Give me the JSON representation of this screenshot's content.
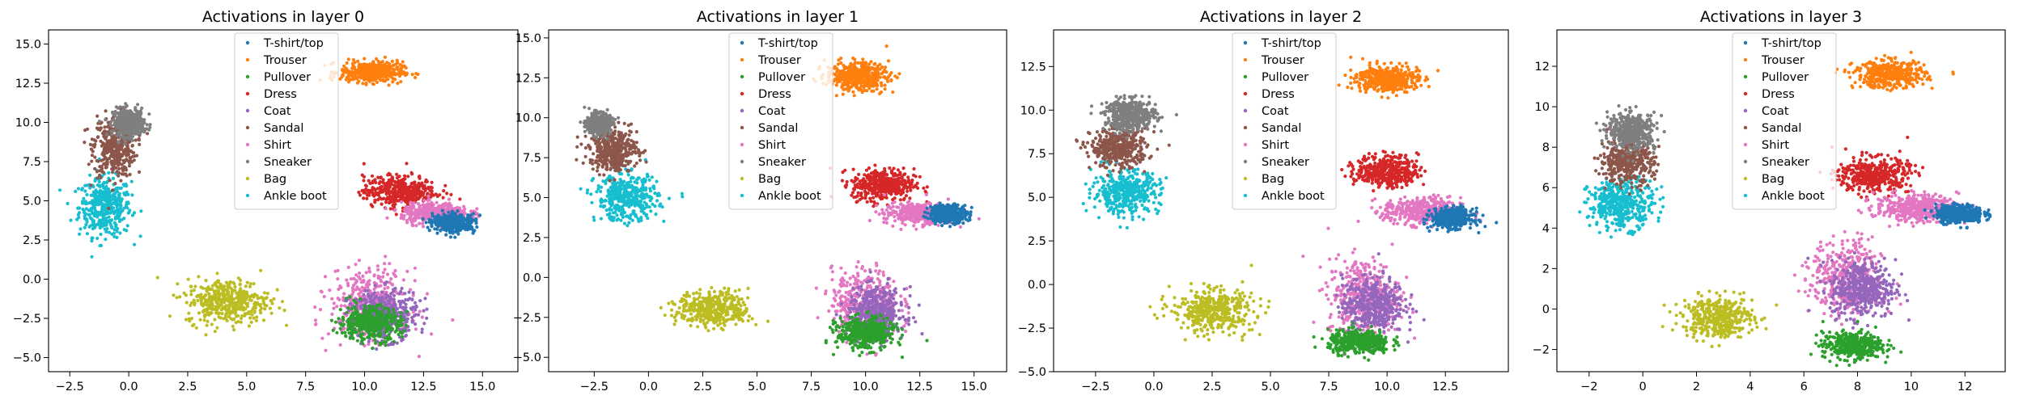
{
  "figure": {
    "layer_label": "Activations in layer"
  },
  "legend_labels": [
    "T-shirt/top",
    "Trouser",
    "Pullover",
    "Dress",
    "Coat",
    "Sandal",
    "Shirt",
    "Sneaker",
    "Bag",
    "Ankle boot"
  ],
  "colors": [
    "#1f77b4",
    "#ff7f0e",
    "#2ca02c",
    "#d62728",
    "#9467bd",
    "#8c564b",
    "#e377c2",
    "#7f7f7f",
    "#bcbd22",
    "#17becf"
  ],
  "chart_data": [
    {
      "type": "scatter",
      "title": "Activations in layer 0",
      "xlim": [
        -3.4,
        16.5
      ],
      "ylim": [
        -5.9,
        15.9
      ],
      "xticks": [
        -2.5,
        0.0,
        2.5,
        5.0,
        7.5,
        10.0,
        12.5,
        15.0
      ],
      "xtick_labels": [
        "−2.5",
        "0.0",
        "2.5",
        "5.0",
        "7.5",
        "10.0",
        "12.5",
        "15.0"
      ],
      "yticks": [
        -5.0,
        -2.5,
        0.0,
        2.5,
        5.0,
        7.5,
        10.0,
        12.5,
        15.0
      ],
      "ytick_labels": [
        "−5.0",
        "−2.5",
        "0.0",
        "2.5",
        "5.0",
        "7.5",
        "10.0",
        "12.5",
        "15.0"
      ],
      "legend": "upper center",
      "clusters": [
        {
          "class": "Ankle boot",
          "x": -1.0,
          "y": 4.6,
          "sx": 1.0,
          "sy": 1.7
        },
        {
          "class": "Sandal",
          "x": -0.6,
          "y": 8.5,
          "sx": 0.8,
          "sy": 1.8
        },
        {
          "class": "Sneaker",
          "x": 0.0,
          "y": 10.0,
          "sx": 0.6,
          "sy": 0.8
        },
        {
          "class": "Trouser",
          "x": 10.3,
          "y": 13.2,
          "sx": 1.2,
          "sy": 0.6
        },
        {
          "class": "Bag",
          "x": 4.2,
          "y": -1.4,
          "sx": 1.6,
          "sy": 1.3
        },
        {
          "class": "Dress",
          "x": 11.5,
          "y": 5.6,
          "sx": 1.4,
          "sy": 0.9
        },
        {
          "class": "Shirt",
          "x": 13.0,
          "y": 4.2,
          "sx": 1.3,
          "sy": 0.6
        },
        {
          "class": "Shirt",
          "x": 10.2,
          "y": -1.6,
          "sx": 1.5,
          "sy": 2.0
        },
        {
          "class": "Coat",
          "x": 10.8,
          "y": -2.3,
          "sx": 1.3,
          "sy": 1.4
        },
        {
          "class": "Pullover",
          "x": 10.2,
          "y": -2.8,
          "sx": 1.2,
          "sy": 1.0
        },
        {
          "class": "T-shirt/top",
          "x": 13.8,
          "y": 3.6,
          "sx": 0.8,
          "sy": 0.5
        }
      ]
    },
    {
      "type": "scatter",
      "title": "Activations in layer 1",
      "xlim": [
        -4.6,
        16.5
      ],
      "ylim": [
        -5.9,
        15.5
      ],
      "xticks": [
        -2.5,
        0.0,
        2.5,
        5.0,
        7.5,
        10.0,
        12.5,
        15.0
      ],
      "xtick_labels": [
        "−2.5",
        "0.0",
        "2.5",
        "5.0",
        "7.5",
        "10.0",
        "12.5",
        "15.0"
      ],
      "yticks": [
        -5.0,
        -2.5,
        0.0,
        2.5,
        5.0,
        7.5,
        10.0,
        12.5,
        15.0
      ],
      "ytick_labels": [
        "−5.0",
        "−2.5",
        "0.0",
        "2.5",
        "5.0",
        "7.5",
        "10.0",
        "12.5",
        "15.0"
      ],
      "legend": "upper center",
      "clusters": [
        {
          "class": "Ankle boot",
          "x": -1.0,
          "y": 5.0,
          "sx": 1.3,
          "sy": 1.3
        },
        {
          "class": "Sandal",
          "x": -1.6,
          "y": 8.0,
          "sx": 1.0,
          "sy": 1.2
        },
        {
          "class": "Sneaker",
          "x": -2.3,
          "y": 9.6,
          "sx": 0.5,
          "sy": 0.6
        },
        {
          "class": "Trouser",
          "x": 9.6,
          "y": 12.6,
          "sx": 1.3,
          "sy": 0.8
        },
        {
          "class": "Bag",
          "x": 3.0,
          "y": -2.0,
          "sx": 1.5,
          "sy": 1.0
        },
        {
          "class": "Dress",
          "x": 10.8,
          "y": 5.8,
          "sx": 1.3,
          "sy": 0.9
        },
        {
          "class": "Shirt",
          "x": 12.5,
          "y": 4.0,
          "sx": 1.5,
          "sy": 0.6
        },
        {
          "class": "Shirt",
          "x": 10.0,
          "y": -1.6,
          "sx": 1.4,
          "sy": 1.9
        },
        {
          "class": "Coat",
          "x": 10.5,
          "y": -2.2,
          "sx": 1.2,
          "sy": 1.4
        },
        {
          "class": "Pullover",
          "x": 10.0,
          "y": -3.5,
          "sx": 1.2,
          "sy": 0.9
        },
        {
          "class": "T-shirt/top",
          "x": 13.8,
          "y": 4.0,
          "sx": 0.8,
          "sy": 0.5
        }
      ]
    },
    {
      "type": "scatter",
      "title": "Activations in layer 2",
      "xlim": [
        -4.3,
        15.2
      ],
      "ylim": [
        -5.0,
        14.6
      ],
      "xticks": [
        -2.5,
        0.0,
        2.5,
        5.0,
        7.5,
        10.0,
        12.5
      ],
      "xtick_labels": [
        "−2.5",
        "0.0",
        "2.5",
        "5.0",
        "7.5",
        "10.0",
        "12.5"
      ],
      "yticks": [
        -5.0,
        -2.5,
        0.0,
        2.5,
        5.0,
        7.5,
        10.0,
        12.5
      ],
      "ytick_labels": [
        "−5.0",
        "−2.5",
        "0.0",
        "2.5",
        "5.0",
        "7.5",
        "10.0",
        "12.5"
      ],
      "legend": "upper center",
      "clusters": [
        {
          "class": "Ankle boot",
          "x": -1.2,
          "y": 5.3,
          "sx": 1.3,
          "sy": 1.1
        },
        {
          "class": "Sandal",
          "x": -1.5,
          "y": 7.8,
          "sx": 1.1,
          "sy": 1.0
        },
        {
          "class": "Sneaker",
          "x": -1.0,
          "y": 9.7,
          "sx": 1.0,
          "sy": 0.8
        },
        {
          "class": "Trouser",
          "x": 10.0,
          "y": 11.8,
          "sx": 1.2,
          "sy": 0.7
        },
        {
          "class": "Bag",
          "x": 2.5,
          "y": -1.5,
          "sx": 1.6,
          "sy": 1.1
        },
        {
          "class": "Dress",
          "x": 10.0,
          "y": 6.5,
          "sx": 1.2,
          "sy": 0.8
        },
        {
          "class": "Shirt",
          "x": 11.5,
          "y": 4.2,
          "sx": 1.5,
          "sy": 0.7
        },
        {
          "class": "Shirt",
          "x": 9.0,
          "y": -0.7,
          "sx": 1.4,
          "sy": 2.0
        },
        {
          "class": "Coat",
          "x": 9.4,
          "y": -1.2,
          "sx": 1.2,
          "sy": 1.5
        },
        {
          "class": "Pullover",
          "x": 8.8,
          "y": -3.3,
          "sx": 1.2,
          "sy": 0.6
        },
        {
          "class": "T-shirt/top",
          "x": 12.8,
          "y": 3.8,
          "sx": 0.8,
          "sy": 0.5
        }
      ]
    },
    {
      "type": "scatter",
      "title": "Activations in layer 3",
      "xlim": [
        -3.2,
        13.5
      ],
      "ylim": [
        -3.1,
        13.8
      ],
      "xticks": [
        -2,
        0,
        2,
        4,
        6,
        8,
        10,
        12
      ],
      "xtick_labels": [
        "−2",
        "0",
        "2",
        "4",
        "6",
        "8",
        "10",
        "12"
      ],
      "yticks": [
        -2,
        0,
        2,
        4,
        6,
        8,
        10,
        12
      ],
      "ytick_labels": [
        "−2",
        "0",
        "2",
        "4",
        "6",
        "8",
        "10",
        "12"
      ],
      "legend": "upper center",
      "clusters": [
        {
          "class": "Ankle boot",
          "x": -0.8,
          "y": 5.2,
          "sx": 1.1,
          "sy": 1.1
        },
        {
          "class": "Sandal",
          "x": -0.6,
          "y": 7.3,
          "sx": 0.9,
          "sy": 1.0
        },
        {
          "class": "Sneaker",
          "x": -0.4,
          "y": 8.8,
          "sx": 0.8,
          "sy": 0.8
        },
        {
          "class": "Trouser",
          "x": 9.2,
          "y": 11.6,
          "sx": 1.2,
          "sy": 0.6
        },
        {
          "class": "Bag",
          "x": 2.8,
          "y": -0.4,
          "sx": 1.2,
          "sy": 0.9
        },
        {
          "class": "Dress",
          "x": 8.6,
          "y": 6.6,
          "sx": 1.2,
          "sy": 0.8
        },
        {
          "class": "Shirt",
          "x": 10.2,
          "y": 5.0,
          "sx": 1.4,
          "sy": 0.6
        },
        {
          "class": "Shirt",
          "x": 7.6,
          "y": 1.5,
          "sx": 1.2,
          "sy": 1.7
        },
        {
          "class": "Coat",
          "x": 8.2,
          "y": 1.0,
          "sx": 1.1,
          "sy": 1.3
        },
        {
          "class": "Pullover",
          "x": 7.8,
          "y": -1.8,
          "sx": 1.0,
          "sy": 0.6
        },
        {
          "class": "T-shirt/top",
          "x": 11.8,
          "y": 4.7,
          "sx": 0.8,
          "sy": 0.4
        }
      ]
    }
  ]
}
